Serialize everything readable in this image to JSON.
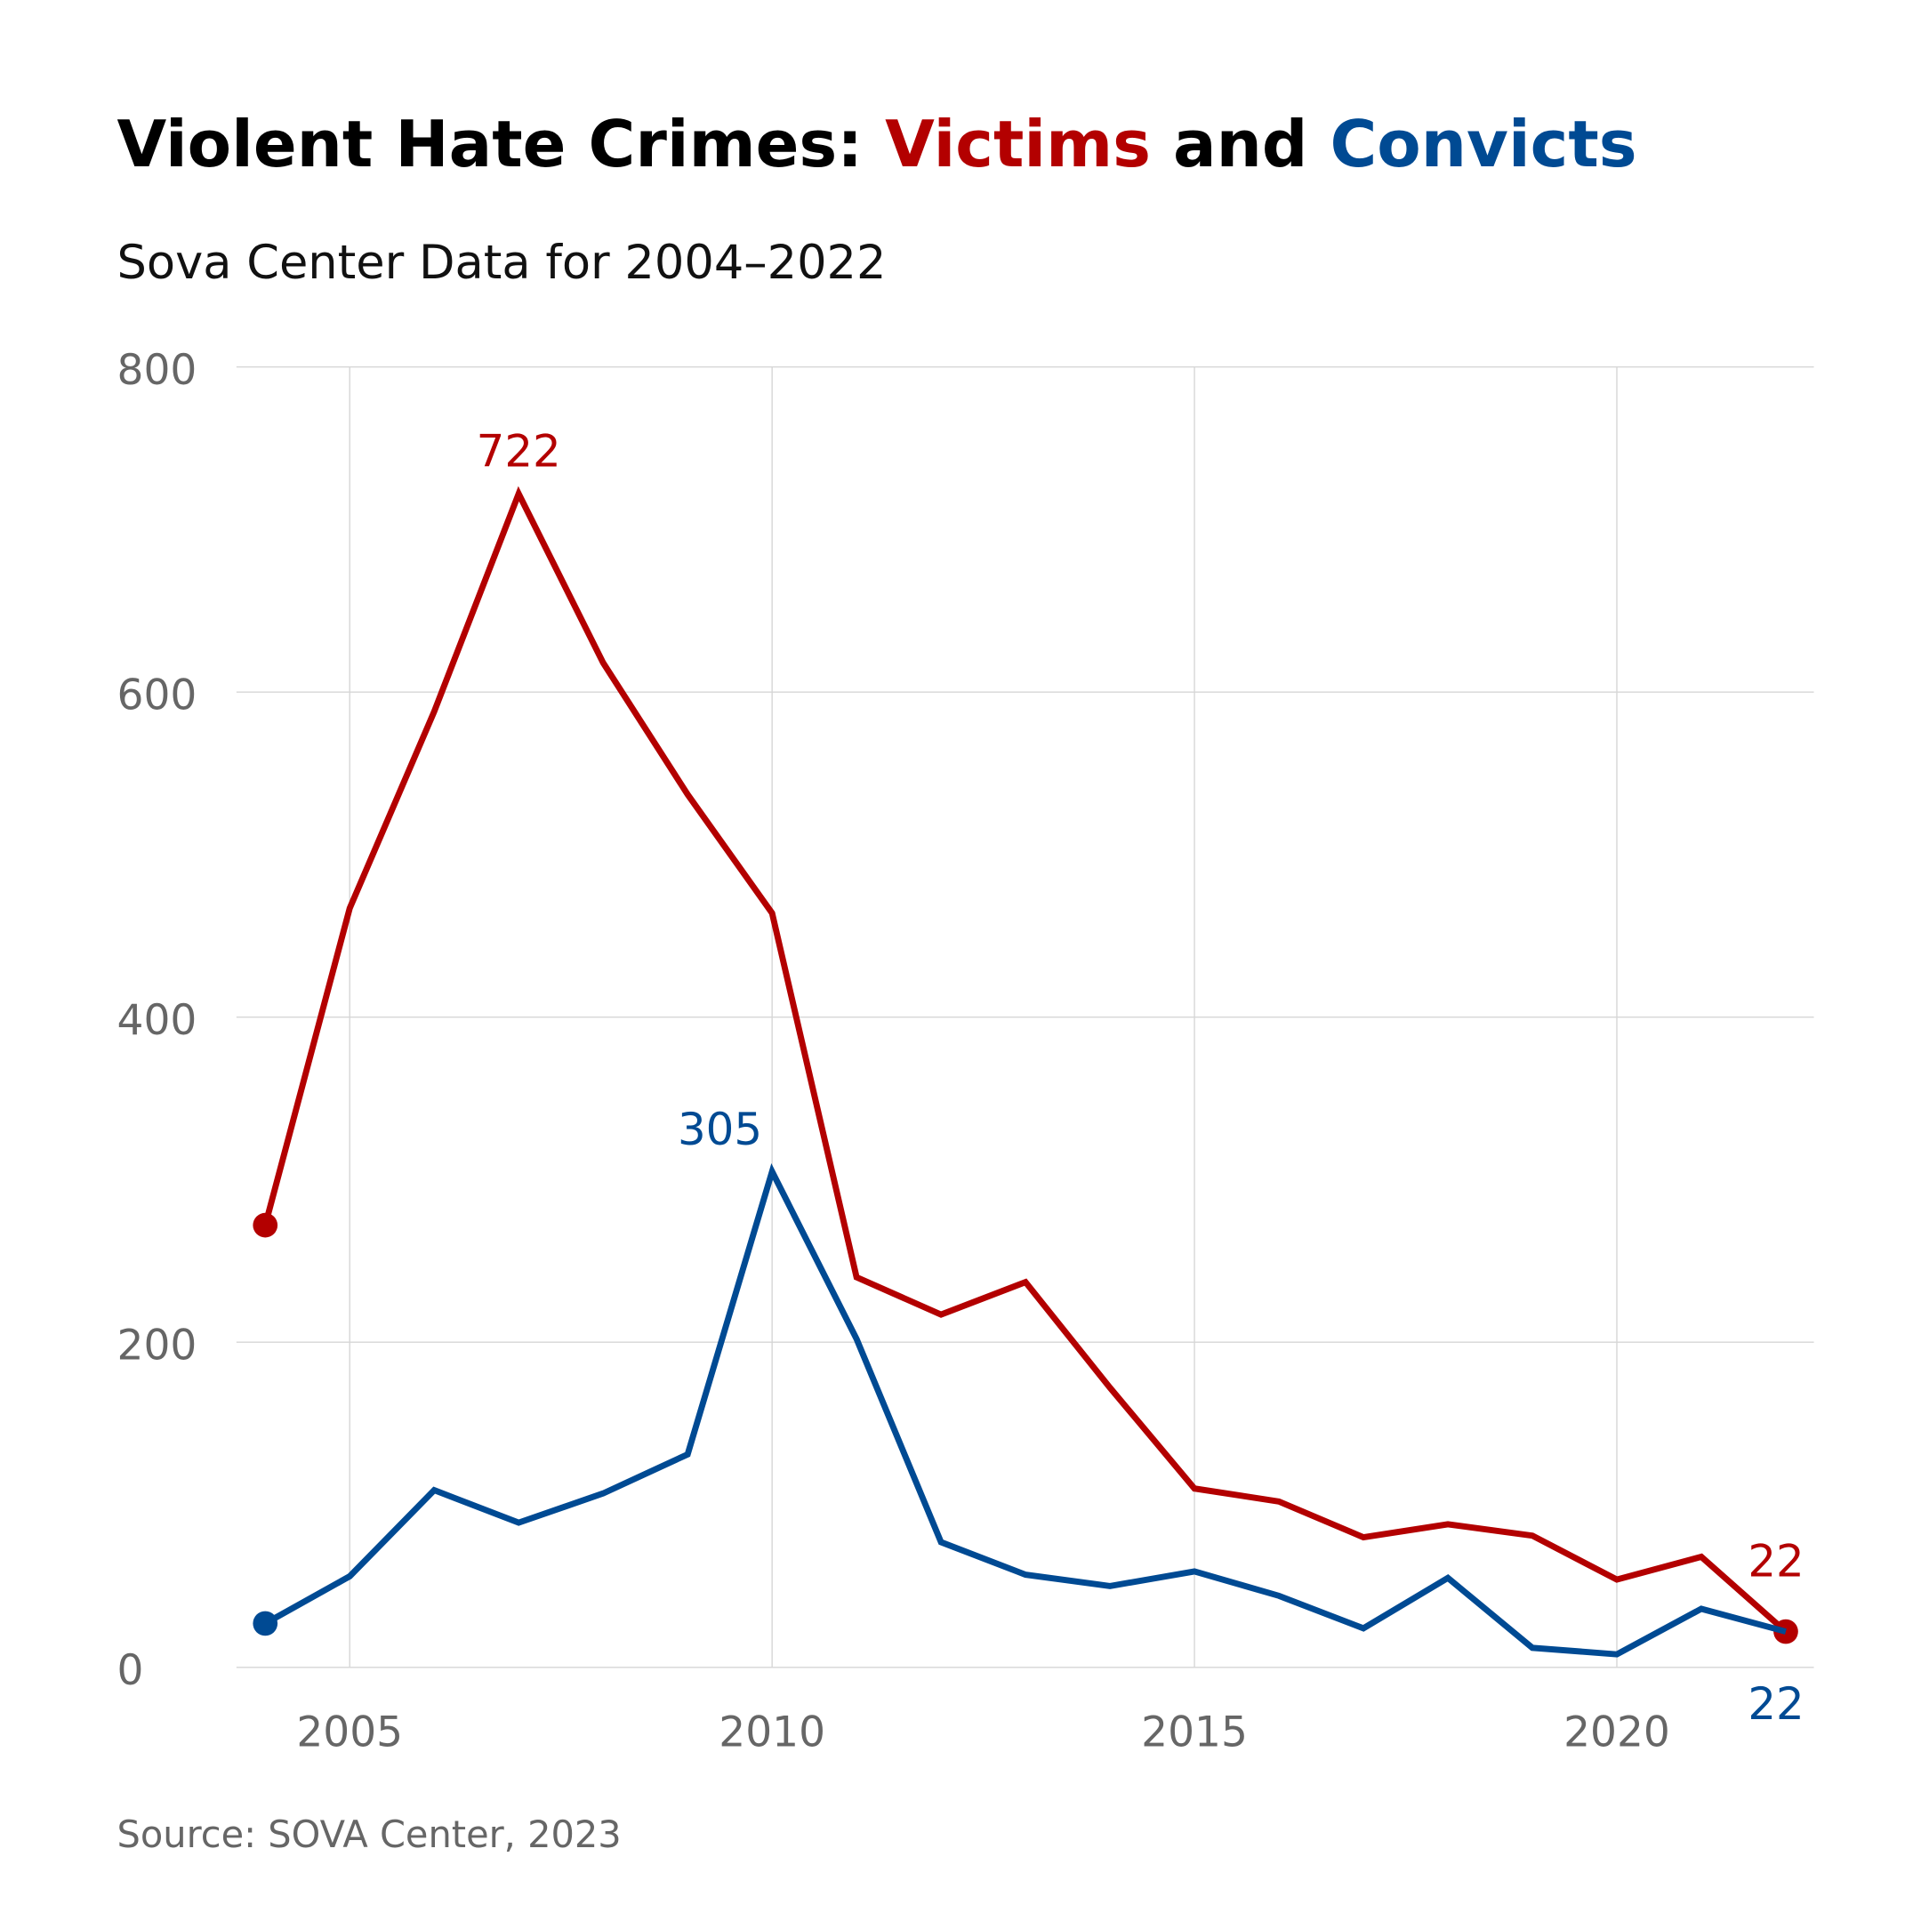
{
  "chart_data": {
    "type": "line",
    "title_parts": [
      "Violent Hate Crimes: ",
      "Victims",
      " and ",
      "Convicts"
    ],
    "subtitle": "Sova Center Data for 2004–2022",
    "source": "Source: SOVA Center, 2023",
    "xlabel": "",
    "ylabel": "",
    "x": [
      2004,
      2005,
      2006,
      2007,
      2008,
      2009,
      2010,
      2011,
      2012,
      2013,
      2014,
      2015,
      2016,
      2017,
      2018,
      2019,
      2020,
      2021,
      2022
    ],
    "xlim": [
      2003.35,
      2022.35
    ],
    "ylim": [
      0,
      800
    ],
    "x_ticks": [
      "2005",
      "2010",
      "2015",
      "2020"
    ],
    "y_ticks": [
      "0",
      "200",
      "400",
      "600",
      "800"
    ],
    "grid": true,
    "series": [
      {
        "name": "Victims",
        "color": "#b30000",
        "values": [
          272,
          467,
          588,
          722,
          618,
          537,
          464,
          240,
          217,
          237,
          172,
          110,
          102,
          80,
          88,
          81,
          54,
          68,
          22
        ],
        "labels": {
          "max": "722",
          "end": "22"
        }
      },
      {
        "name": "Convicts",
        "color": "#004a93",
        "values": [
          27,
          56,
          109,
          89,
          107,
          131,
          305,
          202,
          77,
          57,
          50,
          59,
          44,
          24,
          55,
          12,
          8,
          36,
          22
        ],
        "labels": {
          "max": "305",
          "end": "22"
        }
      }
    ]
  }
}
